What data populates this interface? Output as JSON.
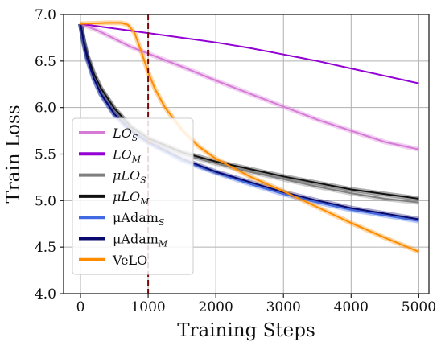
{
  "chart_data": {
    "type": "line",
    "xlabel": "Training Steps",
    "ylabel": "Train Loss",
    "xlim": [
      -250,
      5150
    ],
    "ylim": [
      4.0,
      7.0
    ],
    "xticks": [
      0,
      1000,
      2000,
      3000,
      4000,
      5000
    ],
    "yticks": [
      4.0,
      4.5,
      5.0,
      5.5,
      6.0,
      6.5,
      7.0
    ],
    "xtick_labels": [
      "0",
      "1000",
      "2000",
      "3000",
      "4000",
      "5000"
    ],
    "ytick_labels": [
      "4.0",
      "4.5",
      "5.0",
      "5.5",
      "6.0",
      "6.5",
      "7.0"
    ],
    "grid": true,
    "legend_position": "lower-left",
    "annotations": [
      {
        "type": "vertical-dashed-line",
        "x": 1000,
        "color": "#7a0a0a"
      }
    ],
    "series": [
      {
        "name": "LO_S",
        "base": "LO",
        "sub": "S",
        "italic": true,
        "color": "#d67ad6",
        "band": true,
        "points": [
          [
            0,
            6.9
          ],
          [
            250,
            6.83
          ],
          [
            500,
            6.74
          ],
          [
            750,
            6.65
          ],
          [
            1000,
            6.58
          ],
          [
            1500,
            6.44
          ],
          [
            2000,
            6.29
          ],
          [
            2500,
            6.15
          ],
          [
            3000,
            6.01
          ],
          [
            3500,
            5.87
          ],
          [
            4000,
            5.75
          ],
          [
            4500,
            5.63
          ],
          [
            5000,
            5.55
          ]
        ]
      },
      {
        "name": "LO_M",
        "base": "LO",
        "sub": "M",
        "italic": true,
        "color": "#9400d3",
        "band": false,
        "points": [
          [
            0,
            6.9
          ],
          [
            500,
            6.85
          ],
          [
            1000,
            6.8
          ],
          [
            1500,
            6.75
          ],
          [
            2000,
            6.7
          ],
          [
            2500,
            6.64
          ],
          [
            3000,
            6.57
          ],
          [
            3500,
            6.5
          ],
          [
            4000,
            6.42
          ],
          [
            4500,
            6.34
          ],
          [
            5000,
            6.26
          ]
        ]
      },
      {
        "name": "μLO_S",
        "base": "μLO",
        "sub": "S",
        "italic": true,
        "color": "#7f7f7f",
        "band": true,
        "points": [
          [
            0,
            6.9
          ],
          [
            50,
            6.7
          ],
          [
            100,
            6.55
          ],
          [
            200,
            6.35
          ],
          [
            300,
            6.2
          ],
          [
            500,
            5.98
          ],
          [
            750,
            5.78
          ],
          [
            1000,
            5.66
          ],
          [
            1500,
            5.5
          ],
          [
            2000,
            5.4
          ],
          [
            2500,
            5.31
          ],
          [
            3000,
            5.23
          ],
          [
            3500,
            5.15
          ],
          [
            4000,
            5.08
          ],
          [
            4500,
            5.02
          ],
          [
            5000,
            4.98
          ]
        ]
      },
      {
        "name": "μLO_M",
        "base": "μLO",
        "sub": "M",
        "italic": true,
        "color": "#111111",
        "band": true,
        "points": [
          [
            0,
            6.9
          ],
          [
            50,
            6.71
          ],
          [
            100,
            6.56
          ],
          [
            200,
            6.36
          ],
          [
            300,
            6.21
          ],
          [
            500,
            5.99
          ],
          [
            750,
            5.79
          ],
          [
            1000,
            5.67
          ],
          [
            1500,
            5.52
          ],
          [
            2000,
            5.42
          ],
          [
            2500,
            5.34
          ],
          [
            3000,
            5.26
          ],
          [
            3500,
            5.19
          ],
          [
            4000,
            5.12
          ],
          [
            4500,
            5.07
          ],
          [
            5000,
            5.02
          ]
        ]
      },
      {
        "name": "μAdam_S",
        "base": "μAdam",
        "sub": "S",
        "italic": false,
        "color": "#4169e1",
        "band": true,
        "points": [
          [
            0,
            6.9
          ],
          [
            50,
            6.68
          ],
          [
            100,
            6.52
          ],
          [
            200,
            6.3
          ],
          [
            300,
            6.14
          ],
          [
            500,
            5.92
          ],
          [
            750,
            5.74
          ],
          [
            1000,
            5.62
          ],
          [
            1500,
            5.43
          ],
          [
            2000,
            5.3
          ],
          [
            2500,
            5.18
          ],
          [
            3000,
            5.07
          ],
          [
            3500,
            4.98
          ],
          [
            4000,
            4.9
          ],
          [
            4500,
            4.84
          ],
          [
            5000,
            4.78
          ]
        ]
      },
      {
        "name": "μAdam_M",
        "base": "μAdam",
        "sub": "M",
        "italic": false,
        "color": "#0a0a6e",
        "band": true,
        "points": [
          [
            0,
            6.9
          ],
          [
            50,
            6.69
          ],
          [
            100,
            6.53
          ],
          [
            200,
            6.31
          ],
          [
            300,
            6.15
          ],
          [
            500,
            5.93
          ],
          [
            750,
            5.75
          ],
          [
            1000,
            5.63
          ],
          [
            1500,
            5.45
          ],
          [
            2000,
            5.31
          ],
          [
            2500,
            5.2
          ],
          [
            3000,
            5.09
          ],
          [
            3500,
            5.0
          ],
          [
            4000,
            4.92
          ],
          [
            4500,
            4.86
          ],
          [
            5000,
            4.8
          ]
        ]
      },
      {
        "name": "VeLO",
        "base": "VeLO",
        "sub": "",
        "italic": false,
        "color": "#ff8c00",
        "band": true,
        "points": [
          [
            0,
            6.9
          ],
          [
            400,
            6.91
          ],
          [
            600,
            6.91
          ],
          [
            700,
            6.89
          ],
          [
            800,
            6.8
          ],
          [
            900,
            6.6
          ],
          [
            1000,
            6.38
          ],
          [
            1100,
            6.2
          ],
          [
            1250,
            6.0
          ],
          [
            1500,
            5.76
          ],
          [
            1750,
            5.58
          ],
          [
            2000,
            5.45
          ],
          [
            2500,
            5.26
          ],
          [
            3000,
            5.1
          ],
          [
            3500,
            4.93
          ],
          [
            4000,
            4.76
          ],
          [
            4500,
            4.6
          ],
          [
            5000,
            4.45
          ]
        ]
      }
    ]
  }
}
